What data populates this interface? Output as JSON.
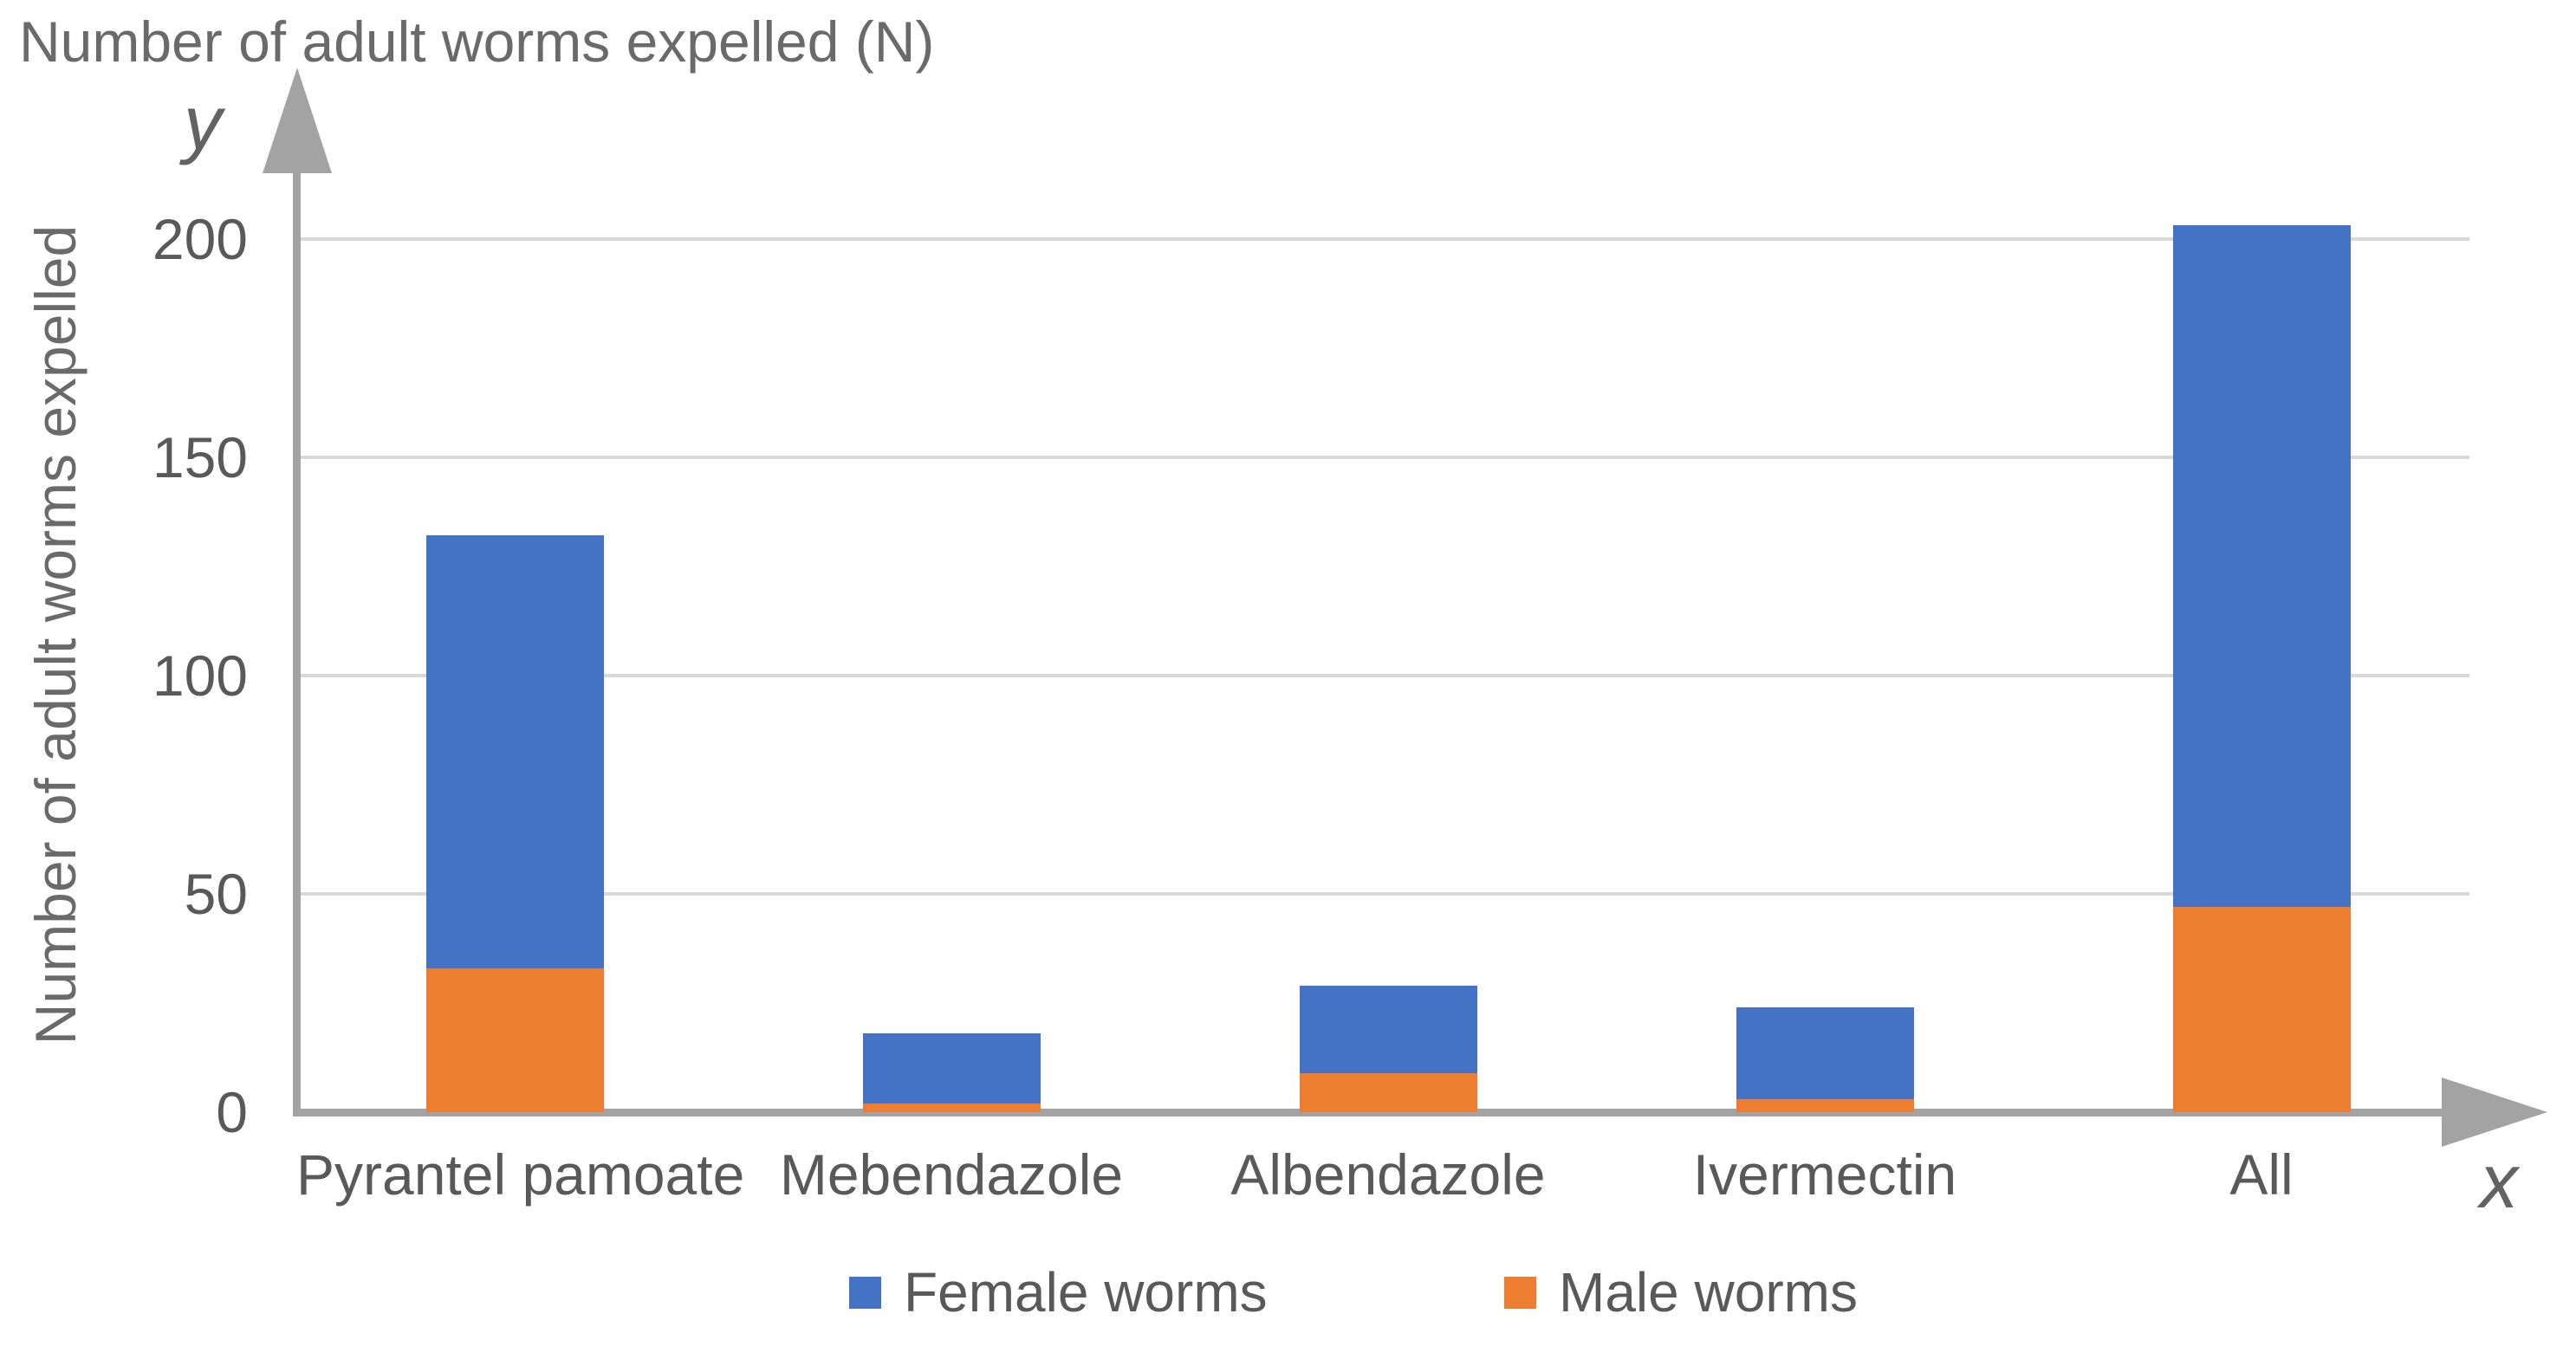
{
  "title": "Number of adult worms expelled (N)",
  "y_axis": {
    "label": "Number of adult worms expelled",
    "letter": "y",
    "ticks": [
      0,
      50,
      100,
      150,
      200
    ]
  },
  "x_axis": {
    "letter": "x"
  },
  "legend": [
    {
      "label": "Female worms",
      "color": "#4472C4"
    },
    {
      "label": "Male worms",
      "color": "#ED7D31"
    }
  ],
  "colors": {
    "female": "#4472C4",
    "male": "#ED7D31",
    "axis": "#A3A3A3",
    "gridline": "#D9D9D9",
    "text": "#595959"
  },
  "chart_data": {
    "type": "bar",
    "stacked": true,
    "title": "Number of adult worms expelled (N)",
    "categories": [
      "Pyrantel pamoate",
      "Mebendazole",
      "Albendazole",
      "Ivermectin",
      "All"
    ],
    "series": [
      {
        "name": "Female worms",
        "color": "#4472C4",
        "values": [
          99,
          16,
          20,
          21,
          156
        ]
      },
      {
        "name": "Male worms",
        "color": "#ED7D31",
        "values": [
          33,
          2,
          9,
          3,
          47
        ]
      }
    ],
    "stack_bottom_to_top": [
      "Male worms",
      "Female worms"
    ],
    "totals": [
      132,
      18,
      29,
      24,
      203
    ],
    "xlabel": "",
    "ylabel": "Number of adult worms expelled",
    "yticks": [
      0,
      50,
      100,
      150,
      200
    ],
    "ylim": [
      0,
      210
    ],
    "grid": true,
    "legend_position": "bottom"
  }
}
